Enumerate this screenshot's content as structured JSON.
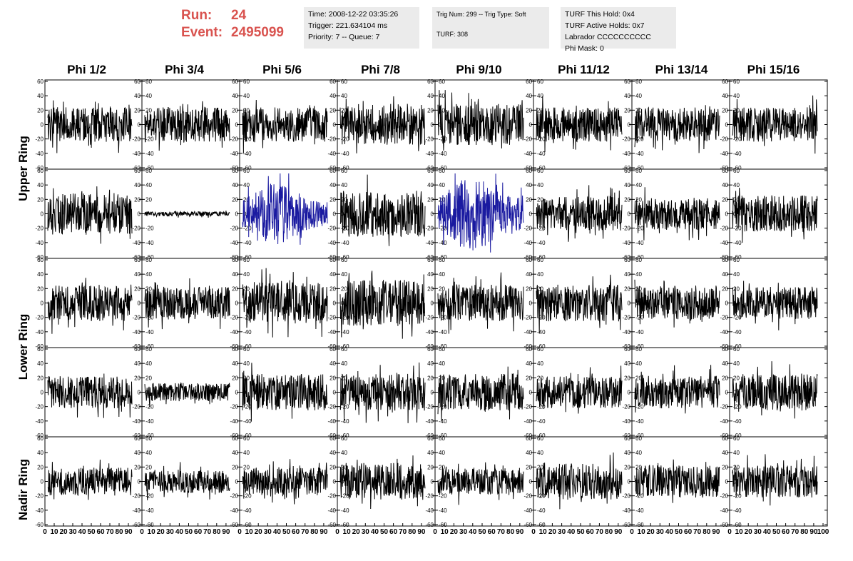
{
  "run_info": {
    "run_label": "Run:",
    "run_value": "24",
    "event_label": "Event:",
    "event_value": "2495099"
  },
  "time_box": {
    "line1": "Time: 2008-12-22 03:35:26",
    "line2": "Trigger: 221.634104 ms",
    "line3": "Priority: 7 -- Queue: 7"
  },
  "trig_box": {
    "line1": "Trig Num: 299 -- Trig Type: Soft",
    "line2": "TURF: 308"
  },
  "turf_box": {
    "line1": "TURF This Hold: 0x4",
    "line2": "TURF Active Holds: 0x7",
    "line3": "Labrador CCCCCCCCCC",
    "line4": "Phi Mask: 0"
  },
  "colors": {
    "normal_trace": "#000000",
    "highlight_trace": "#1a1aa0",
    "run_text": "#d9534f"
  },
  "chart_data": {
    "type": "line",
    "columns": [
      "Phi 1/2",
      "Phi 3/4",
      "Phi 5/6",
      "Phi 7/8",
      "Phi 9/10",
      "Phi 11/12",
      "Phi 13/14",
      "Phi 15/16"
    ],
    "ring_labels": [
      "Upper Ring",
      "Lower Ring",
      "Nadir Ring"
    ],
    "ylim": [
      -60,
      60
    ],
    "yticks": [
      -60,
      -40,
      -20,
      0,
      20,
      40,
      60
    ],
    "xlim": [
      0,
      100
    ],
    "xticks": [
      0,
      10,
      20,
      30,
      40,
      50,
      60,
      70,
      80,
      90,
      100
    ],
    "grid": false,
    "panel_rows": [
      {
        "amplitudes": [
          15,
          15,
          15,
          18,
          18,
          15,
          15,
          15
        ],
        "highlight": [
          false,
          false,
          false,
          false,
          false,
          false,
          false,
          false
        ]
      },
      {
        "amplitudes": [
          18,
          2,
          18,
          20,
          22,
          15,
          14,
          16
        ],
        "highlight": [
          false,
          false,
          true,
          false,
          true,
          false,
          false,
          false
        ]
      },
      {
        "amplitudes": [
          16,
          14,
          18,
          20,
          16,
          16,
          15,
          14
        ],
        "highlight": [
          false,
          false,
          false,
          false,
          false,
          false,
          false,
          false
        ]
      },
      {
        "amplitudes": [
          14,
          8,
          16,
          16,
          16,
          14,
          14,
          16
        ],
        "highlight": [
          false,
          false,
          false,
          false,
          false,
          false,
          false,
          false
        ]
      },
      {
        "amplitudes": [
          12,
          10,
          12,
          16,
          12,
          16,
          14,
          14
        ],
        "highlight": [
          false,
          false,
          false,
          false,
          false,
          false,
          false,
          false
        ]
      }
    ]
  }
}
